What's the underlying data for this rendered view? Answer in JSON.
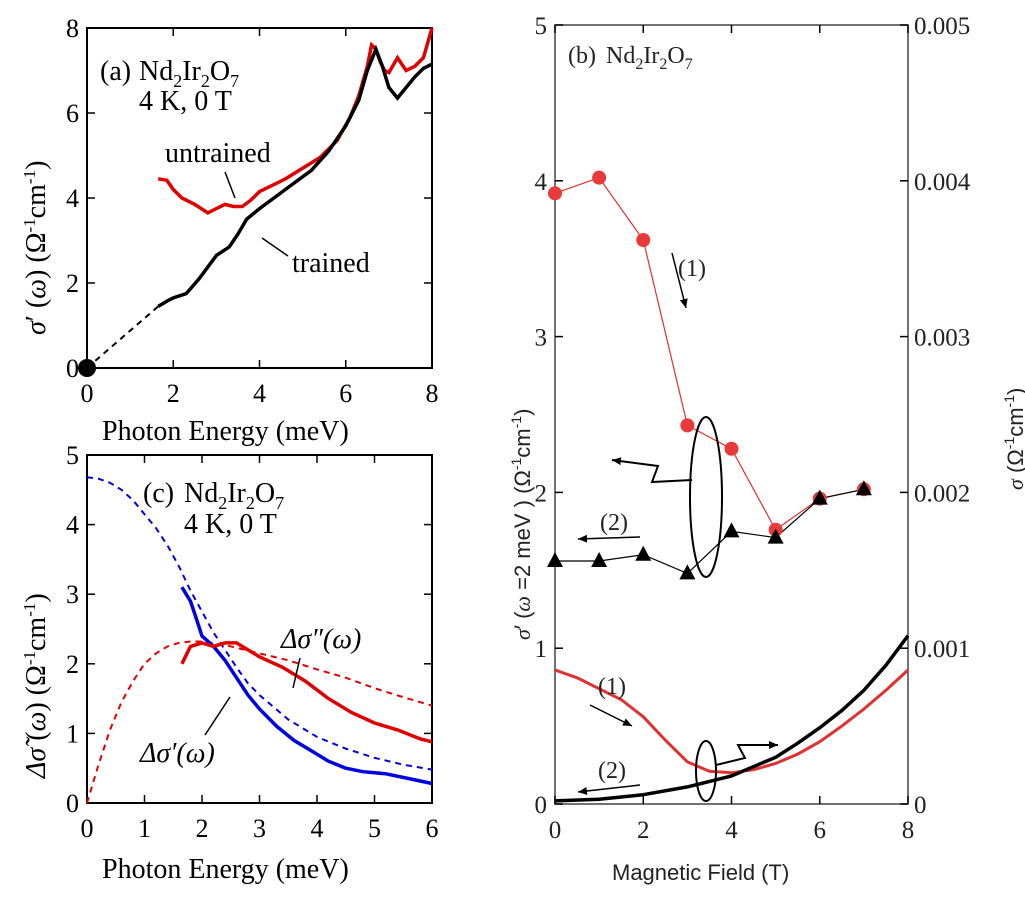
{
  "chart_data": [
    {
      "panel": "a",
      "type": "line",
      "panel_label": "(a)",
      "material": "Nd2Ir2O7",
      "condition": "4 K, 0 T",
      "xlabel": "Photon Energy (meV)",
      "ylabel": "σ′(ω) (Ω⁻¹cm⁻¹)",
      "xlim": [
        0,
        8
      ],
      "ylim": [
        0,
        8
      ],
      "xticks": [
        "0",
        "2",
        "4",
        "6",
        "8"
      ],
      "yticks": [
        "0",
        "2",
        "4",
        "6",
        "8"
      ],
      "colors": {
        "untrained": "#e00000",
        "trained": "#000000"
      },
      "series": [
        {
          "name": "untrained",
          "x": [
            1.65,
            1.85,
            2.0,
            2.2,
            2.5,
            2.8,
            3.0,
            3.2,
            3.4,
            3.6,
            3.8,
            4.0,
            4.3,
            4.6,
            5.0,
            5.4,
            5.8,
            6.1,
            6.3,
            6.5,
            6.6,
            6.7,
            6.8,
            6.9,
            7.0,
            7.2,
            7.4,
            7.6,
            7.8,
            8.0
          ],
          "y": [
            4.45,
            4.42,
            4.2,
            4.0,
            3.85,
            3.65,
            3.75,
            3.85,
            3.8,
            3.8,
            3.95,
            4.15,
            4.3,
            4.45,
            4.7,
            4.95,
            5.35,
            5.9,
            6.4,
            7.1,
            7.6,
            7.5,
            7.2,
            7.0,
            6.95,
            7.3,
            7.0,
            7.1,
            7.3,
            8.0
          ]
        },
        {
          "name": "trained",
          "x": [
            1.65,
            1.9,
            2.0,
            2.3,
            2.6,
            3.0,
            3.3,
            3.5,
            3.7,
            4.0,
            4.4,
            4.8,
            5.2,
            5.6,
            6.0,
            6.3,
            6.5,
            6.7,
            6.85,
            7.0,
            7.2,
            7.4,
            7.6,
            7.8,
            8.0
          ],
          "y": [
            1.45,
            1.6,
            1.65,
            1.75,
            2.1,
            2.65,
            2.85,
            3.15,
            3.5,
            3.75,
            4.05,
            4.35,
            4.65,
            5.1,
            5.7,
            6.3,
            7.0,
            7.5,
            7.1,
            6.6,
            6.35,
            6.6,
            6.85,
            7.05,
            7.15
          ]
        },
        {
          "name": "extrapolation",
          "style": "dashed",
          "x": [
            0,
            1.65
          ],
          "y": [
            0,
            1.45
          ]
        }
      ],
      "annotations": [
        "untrained",
        "trained"
      ],
      "marker_point": {
        "x": 0,
        "y": 0
      }
    },
    {
      "panel": "c",
      "type": "line",
      "panel_label": "(c)",
      "material": "Nd2Ir2O7",
      "condition": "4 K, 0 T",
      "xlabel": "Photon Energy (meV)",
      "ylabel": "Δσ̃(ω) (Ω⁻¹cm⁻¹)",
      "xlim": [
        0,
        6
      ],
      "ylim": [
        0,
        5
      ],
      "xticks": [
        "0",
        "1",
        "2",
        "3",
        "4",
        "5",
        "6"
      ],
      "yticks": [
        "0",
        "1",
        "2",
        "3",
        "4",
        "5"
      ],
      "colors": {
        "real": "#0000e0",
        "imag": "#e00000"
      },
      "series": [
        {
          "name": "Δσ′(ω) fit",
          "style": "dashed",
          "color": "blue",
          "x": [
            0,
            0.2,
            0.4,
            0.6,
            0.8,
            1.0,
            1.2,
            1.4,
            1.6,
            1.8,
            2.0,
            2.2,
            2.4,
            2.6,
            2.8,
            3.0,
            3.5,
            4.0,
            4.5,
            5.0,
            5.5,
            6.0
          ],
          "y": [
            4.68,
            4.66,
            4.6,
            4.5,
            4.35,
            4.15,
            3.95,
            3.7,
            3.4,
            3.05,
            2.75,
            2.45,
            2.2,
            1.95,
            1.72,
            1.55,
            1.2,
            0.95,
            0.78,
            0.65,
            0.55,
            0.48
          ]
        },
        {
          "name": "Δσ″(ω) fit",
          "style": "dashed",
          "color": "red",
          "x": [
            0,
            0.2,
            0.4,
            0.6,
            0.8,
            1.0,
            1.2,
            1.4,
            1.6,
            1.8,
            2.0,
            2.2,
            2.5,
            3.0,
            3.5,
            4.0,
            4.5,
            5.0,
            5.5,
            6.0
          ],
          "y": [
            0,
            0.55,
            1.05,
            1.45,
            1.75,
            2.0,
            2.15,
            2.25,
            2.3,
            2.32,
            2.32,
            2.3,
            2.25,
            2.15,
            2.05,
            1.92,
            1.8,
            1.65,
            1.52,
            1.4
          ]
        },
        {
          "name": "Δσ′(ω)",
          "style": "solid",
          "color": "blue",
          "x": [
            1.65,
            1.8,
            1.9,
            2.0,
            2.2,
            2.4,
            2.6,
            2.8,
            3.0,
            3.3,
            3.6,
            3.9,
            4.2,
            4.5,
            4.8,
            5.2,
            5.6,
            6.0
          ],
          "y": [
            3.1,
            2.9,
            2.65,
            2.4,
            2.25,
            2.05,
            1.8,
            1.55,
            1.35,
            1.1,
            0.9,
            0.75,
            0.6,
            0.5,
            0.45,
            0.42,
            0.35,
            0.28
          ]
        },
        {
          "name": "Δσ″(ω)",
          "style": "solid",
          "color": "red",
          "x": [
            1.65,
            1.8,
            2.0,
            2.2,
            2.4,
            2.6,
            2.8,
            3.0,
            3.4,
            3.8,
            4.2,
            4.6,
            5.0,
            5.4,
            5.8,
            6.0
          ],
          "y": [
            2.0,
            2.25,
            2.3,
            2.25,
            2.3,
            2.3,
            2.2,
            2.1,
            1.95,
            1.75,
            1.5,
            1.3,
            1.15,
            1.05,
            0.92,
            0.88
          ]
        }
      ],
      "annotations": [
        "Δσ″(ω)",
        "Δσ′(ω)"
      ]
    },
    {
      "panel": "b",
      "type": "line",
      "panel_label": "(b)",
      "material": "Nd2Ir2O7",
      "xlabel": "Magnetic Field (T)",
      "ylabel_left": "σ′(ω=2 meV) (Ω⁻¹cm⁻¹)",
      "ylabel_right": "σ (Ω⁻¹cm⁻¹)",
      "xlim": [
        0,
        8
      ],
      "ylim_left": [
        0,
        5
      ],
      "ylim_right": [
        0,
        0.005
      ],
      "xticks": [
        "0",
        "2",
        "4",
        "6",
        "8"
      ],
      "yticks_left": [
        "0",
        "1",
        "2",
        "3",
        "4",
        "5"
      ],
      "yticks_right": [
        "0",
        "0.001",
        "0.002",
        "0.003",
        "0.004",
        "0.005"
      ],
      "series": [
        {
          "name": "σ′ sweep (1)",
          "marker": "circle",
          "color": "red",
          "x": [
            0,
            1,
            2,
            3,
            4,
            5,
            6,
            7
          ],
          "y": [
            3.92,
            4.02,
            3.62,
            2.43,
            2.28,
            1.76,
            1.96,
            2.02
          ]
        },
        {
          "name": "σ′ sweep (2)",
          "marker": "triangle",
          "color": "black",
          "x": [
            0,
            1,
            2,
            3,
            4,
            5,
            6,
            7
          ],
          "y": [
            1.56,
            1.56,
            1.6,
            1.48,
            1.75,
            1.71,
            1.96,
            2.02
          ]
        },
        {
          "name": "σ dc sweep (1)",
          "axis": "right",
          "color": "red",
          "x": [
            0,
            0.5,
            1.0,
            1.5,
            2.0,
            2.5,
            3.0,
            3.5,
            4.0,
            4.5,
            5.0,
            5.5,
            6.0,
            6.5,
            7.0,
            7.5,
            8.0
          ],
          "y": [
            0.00086,
            0.00081,
            0.00074,
            0.00067,
            0.00056,
            0.00041,
            0.00027,
            0.00021,
            0.0002,
            0.00022,
            0.00026,
            0.00032,
            0.0004,
            0.0005,
            0.00061,
            0.00073,
            0.00086
          ]
        },
        {
          "name": "σ dc sweep (2)",
          "axis": "right",
          "color": "black",
          "x": [
            0,
            1,
            2,
            3,
            4,
            5,
            5.5,
            6.0,
            6.5,
            7.0,
            7.5,
            8.0
          ],
          "y": [
            2e-05,
            3e-05,
            6e-05,
            0.00011,
            0.00018,
            0.0003,
            0.00039,
            0.00049,
            0.0006,
            0.00073,
            0.00089,
            0.00108
          ]
        }
      ],
      "annotations": [
        "(1)",
        "(2)",
        "(1)",
        "(2)"
      ]
    }
  ]
}
